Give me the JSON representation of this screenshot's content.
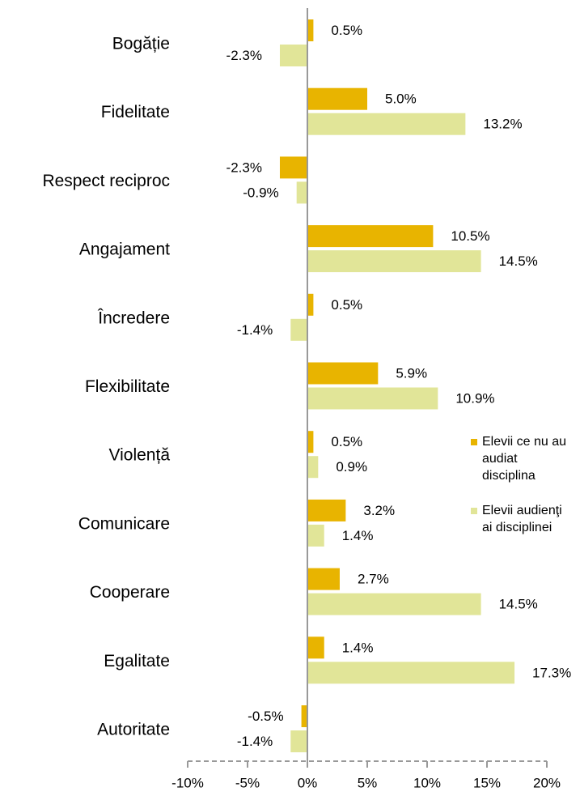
{
  "chart_data": {
    "type": "hbar",
    "categories": [
      "Bogăție",
      "Fidelitate",
      "Respect reciproc",
      "Angajament",
      "Încredere",
      "Flexibilitate",
      "Violență",
      "Comunicare",
      "Cooperare",
      "Egalitate",
      "Autoritate"
    ],
    "series": [
      {
        "name": "Elevii ce nu au audiat disciplina",
        "color": "#e8b400",
        "values": [
          0.5,
          5.0,
          -2.3,
          10.5,
          0.5,
          5.9,
          0.5,
          3.2,
          2.7,
          1.4,
          -0.5
        ],
        "value_labels": [
          "0.5%",
          "5.0%",
          "-2.3%",
          "10.5%",
          "0.5%",
          "5.9%",
          "0.5%",
          "3.2%",
          "2.7%",
          "1.4%",
          "-0.5%"
        ]
      },
      {
        "name": "Elevii audienţi ai disciplinei",
        "color": "#e1e598",
        "values": [
          -2.3,
          13.2,
          -0.9,
          14.5,
          -1.4,
          10.9,
          0.9,
          1.4,
          14.5,
          17.3,
          -1.4
        ],
        "value_labels": [
          "-2.3%",
          "13.2%",
          "-0.9%",
          "14.5%",
          "-1.4%",
          "10.9%",
          "0.9%",
          "1.4%",
          "14.5%",
          "17.3%",
          "-1.4%"
        ]
      }
    ],
    "xlim": [
      -10,
      20
    ],
    "xticks": [
      {
        "value": -10,
        "label": "-10%"
      },
      {
        "value": -5,
        "label": "-5%"
      },
      {
        "value": 0,
        "label": "0%"
      },
      {
        "value": 5,
        "label": "5%"
      },
      {
        "value": 10,
        "label": "10%"
      },
      {
        "value": 15,
        "label": "15%"
      },
      {
        "value": 20,
        "label": "20%"
      }
    ],
    "legend": "right"
  }
}
